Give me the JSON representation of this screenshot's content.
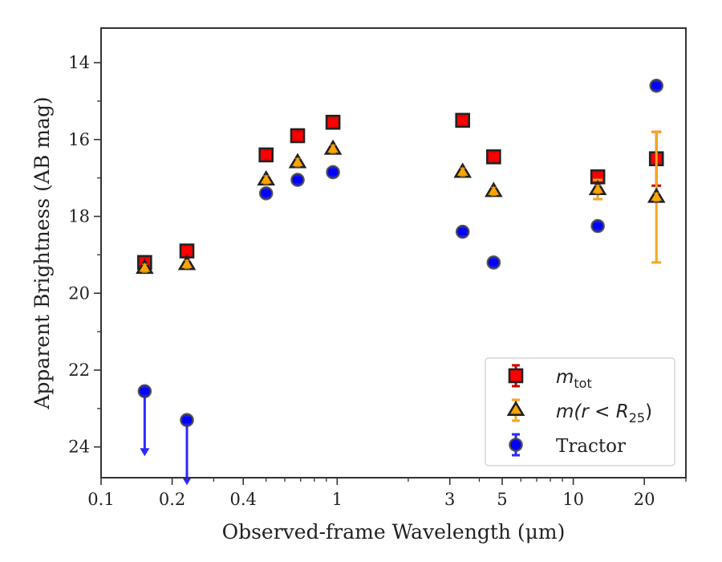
{
  "chart_data": {
    "type": "scatter",
    "xlabel": "Observed-frame Wavelength (μm)",
    "ylabel": "Apparent Brightness (AB mag)",
    "xscale": "log",
    "xlim": [
      0.1,
      30
    ],
    "ylim": [
      24.8,
      13.1
    ],
    "y_inverted": true,
    "x_ticks": [
      0.1,
      0.2,
      0.4,
      1,
      3,
      5,
      10,
      20
    ],
    "x_tick_labels": [
      "0.1",
      "0.2",
      "0.4",
      "1",
      "3",
      "5",
      "10",
      "20"
    ],
    "y_ticks": [
      14,
      16,
      18,
      20,
      22,
      24
    ],
    "y_tick_labels": [
      "14",
      "16",
      "18",
      "20",
      "22",
      "24"
    ],
    "grid": false,
    "legend_position": "lower-right",
    "series": [
      {
        "name": "m_tot",
        "legend_label": {
          "base": "m",
          "sub": "tot"
        },
        "marker": "square",
        "color": "#ff0000",
        "edge_color": "#222222",
        "error_color": "#cc0000",
        "points": [
          {
            "x": 0.153,
            "y": 19.2
          },
          {
            "x": 0.231,
            "y": 18.9
          },
          {
            "x": 0.5,
            "y": 16.4
          },
          {
            "x": 0.68,
            "y": 15.9
          },
          {
            "x": 0.96,
            "y": 15.55
          },
          {
            "x": 3.4,
            "y": 15.5
          },
          {
            "x": 4.6,
            "y": 16.45
          },
          {
            "x": 12.7,
            "y": 16.97
          },
          {
            "x": 22.5,
            "y": 16.5,
            "yerr": [
              0.7,
              0.7
            ]
          }
        ]
      },
      {
        "name": "m(r < R25)",
        "legend_label": {
          "base": "m(r < R",
          "sub": "25",
          "tail": ")"
        },
        "marker": "triangle",
        "color": "#ffa500",
        "edge_color": "#222222",
        "error_color": "#f5a623",
        "points": [
          {
            "x": 0.153,
            "y": 19.35
          },
          {
            "x": 0.231,
            "y": 19.25
          },
          {
            "x": 0.5,
            "y": 17.05
          },
          {
            "x": 0.68,
            "y": 16.6
          },
          {
            "x": 0.96,
            "y": 16.25
          },
          {
            "x": 3.4,
            "y": 16.85
          },
          {
            "x": 4.6,
            "y": 17.35
          },
          {
            "x": 12.7,
            "y": 17.3,
            "yerr": [
              0.25,
              0.25
            ]
          },
          {
            "x": 22.5,
            "y": 17.5,
            "yerr": [
              1.7,
              1.7
            ]
          }
        ]
      },
      {
        "name": "Tractor",
        "legend_label": {
          "base": "Tractor"
        },
        "marker": "circle",
        "color": "#0000ff",
        "edge_color": "#444444",
        "error_color": "#2a2aff",
        "points": [
          {
            "x": 0.153,
            "y": 22.55,
            "upper_limit": true
          },
          {
            "x": 0.231,
            "y": 23.3,
            "upper_limit": true
          },
          {
            "x": 0.5,
            "y": 17.4
          },
          {
            "x": 0.68,
            "y": 17.05
          },
          {
            "x": 0.96,
            "y": 16.85
          },
          {
            "x": 3.4,
            "y": 18.4
          },
          {
            "x": 4.6,
            "y": 19.2
          },
          {
            "x": 12.7,
            "y": 18.25
          },
          {
            "x": 22.5,
            "y": 14.6
          }
        ]
      }
    ]
  }
}
